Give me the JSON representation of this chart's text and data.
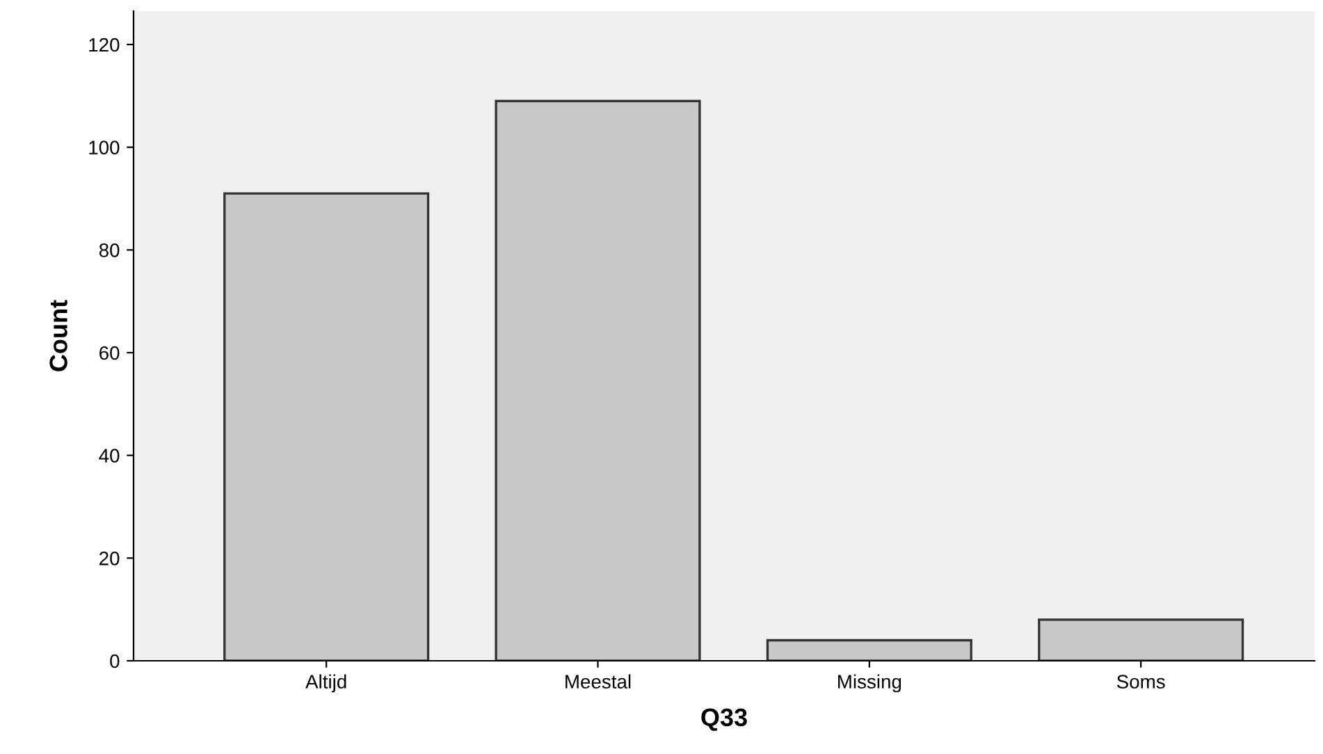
{
  "chart_data": {
    "type": "bar",
    "xlabel": "Q33",
    "ylabel": "Count",
    "categories": [
      "Altijd",
      "Meestal",
      "Missing",
      "Soms"
    ],
    "values": [
      91,
      109,
      4,
      8
    ],
    "color": "#c8c8c8",
    "ylim": [
      0,
      126.5
    ],
    "yticks": [
      0,
      20,
      40,
      60,
      80,
      100,
      120
    ],
    "grid": false,
    "legend": false
  }
}
